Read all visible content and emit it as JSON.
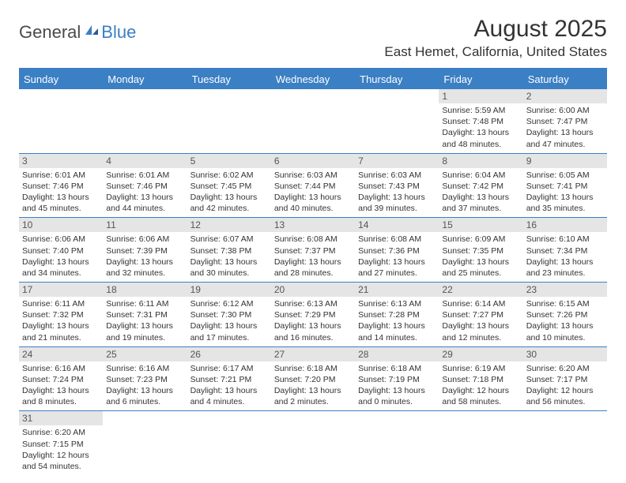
{
  "brand": {
    "part1": "General",
    "part2": "Blue"
  },
  "title": "August 2025",
  "location": "East Hemet, California, United States",
  "colors": {
    "accent": "#3b7fc4",
    "header_text": "#ffffff",
    "daynum_bg": "#e5e5e5",
    "body_text": "#333333",
    "background": "#ffffff"
  },
  "day_labels": [
    "Sunday",
    "Monday",
    "Tuesday",
    "Wednesday",
    "Thursday",
    "Friday",
    "Saturday"
  ],
  "weeks": [
    [
      null,
      null,
      null,
      null,
      null,
      {
        "n": "1",
        "sr": "5:59 AM",
        "ss": "7:48 PM",
        "dl": "13 hours and 48 minutes."
      },
      {
        "n": "2",
        "sr": "6:00 AM",
        "ss": "7:47 PM",
        "dl": "13 hours and 47 minutes."
      }
    ],
    [
      {
        "n": "3",
        "sr": "6:01 AM",
        "ss": "7:46 PM",
        "dl": "13 hours and 45 minutes."
      },
      {
        "n": "4",
        "sr": "6:01 AM",
        "ss": "7:46 PM",
        "dl": "13 hours and 44 minutes."
      },
      {
        "n": "5",
        "sr": "6:02 AM",
        "ss": "7:45 PM",
        "dl": "13 hours and 42 minutes."
      },
      {
        "n": "6",
        "sr": "6:03 AM",
        "ss": "7:44 PM",
        "dl": "13 hours and 40 minutes."
      },
      {
        "n": "7",
        "sr": "6:03 AM",
        "ss": "7:43 PM",
        "dl": "13 hours and 39 minutes."
      },
      {
        "n": "8",
        "sr": "6:04 AM",
        "ss": "7:42 PM",
        "dl": "13 hours and 37 minutes."
      },
      {
        "n": "9",
        "sr": "6:05 AM",
        "ss": "7:41 PM",
        "dl": "13 hours and 35 minutes."
      }
    ],
    [
      {
        "n": "10",
        "sr": "6:06 AM",
        "ss": "7:40 PM",
        "dl": "13 hours and 34 minutes."
      },
      {
        "n": "11",
        "sr": "6:06 AM",
        "ss": "7:39 PM",
        "dl": "13 hours and 32 minutes."
      },
      {
        "n": "12",
        "sr": "6:07 AM",
        "ss": "7:38 PM",
        "dl": "13 hours and 30 minutes."
      },
      {
        "n": "13",
        "sr": "6:08 AM",
        "ss": "7:37 PM",
        "dl": "13 hours and 28 minutes."
      },
      {
        "n": "14",
        "sr": "6:08 AM",
        "ss": "7:36 PM",
        "dl": "13 hours and 27 minutes."
      },
      {
        "n": "15",
        "sr": "6:09 AM",
        "ss": "7:35 PM",
        "dl": "13 hours and 25 minutes."
      },
      {
        "n": "16",
        "sr": "6:10 AM",
        "ss": "7:34 PM",
        "dl": "13 hours and 23 minutes."
      }
    ],
    [
      {
        "n": "17",
        "sr": "6:11 AM",
        "ss": "7:32 PM",
        "dl": "13 hours and 21 minutes."
      },
      {
        "n": "18",
        "sr": "6:11 AM",
        "ss": "7:31 PM",
        "dl": "13 hours and 19 minutes."
      },
      {
        "n": "19",
        "sr": "6:12 AM",
        "ss": "7:30 PM",
        "dl": "13 hours and 17 minutes."
      },
      {
        "n": "20",
        "sr": "6:13 AM",
        "ss": "7:29 PM",
        "dl": "13 hours and 16 minutes."
      },
      {
        "n": "21",
        "sr": "6:13 AM",
        "ss": "7:28 PM",
        "dl": "13 hours and 14 minutes."
      },
      {
        "n": "22",
        "sr": "6:14 AM",
        "ss": "7:27 PM",
        "dl": "13 hours and 12 minutes."
      },
      {
        "n": "23",
        "sr": "6:15 AM",
        "ss": "7:26 PM",
        "dl": "13 hours and 10 minutes."
      }
    ],
    [
      {
        "n": "24",
        "sr": "6:16 AM",
        "ss": "7:24 PM",
        "dl": "13 hours and 8 minutes."
      },
      {
        "n": "25",
        "sr": "6:16 AM",
        "ss": "7:23 PM",
        "dl": "13 hours and 6 minutes."
      },
      {
        "n": "26",
        "sr": "6:17 AM",
        "ss": "7:21 PM",
        "dl": "13 hours and 4 minutes."
      },
      {
        "n": "27",
        "sr": "6:18 AM",
        "ss": "7:20 PM",
        "dl": "13 hours and 2 minutes."
      },
      {
        "n": "28",
        "sr": "6:18 AM",
        "ss": "7:19 PM",
        "dl": "13 hours and 0 minutes."
      },
      {
        "n": "29",
        "sr": "6:19 AM",
        "ss": "7:18 PM",
        "dl": "12 hours and 58 minutes."
      },
      {
        "n": "30",
        "sr": "6:20 AM",
        "ss": "7:17 PM",
        "dl": "12 hours and 56 minutes."
      }
    ],
    [
      {
        "n": "31",
        "sr": "6:20 AM",
        "ss": "7:15 PM",
        "dl": "12 hours and 54 minutes."
      },
      null,
      null,
      null,
      null,
      null,
      null
    ]
  ],
  "labels": {
    "sunrise": "Sunrise:",
    "sunset": "Sunset:",
    "daylight": "Daylight:"
  }
}
